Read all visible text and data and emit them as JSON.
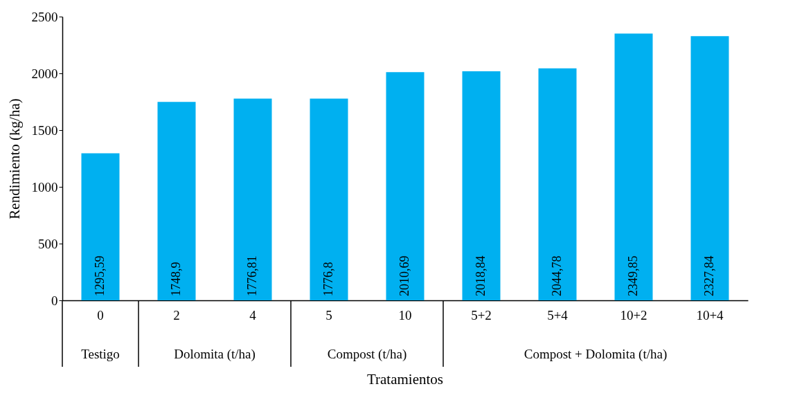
{
  "chart_data": {
    "type": "bar",
    "xlabel": "Tratamientos",
    "ylabel": "Rendimiento (kg/ha)",
    "categories": [
      "0",
      "2",
      "4",
      "5",
      "10",
      "5+2",
      "5+4",
      "10+2",
      "10+4"
    ],
    "values": [
      1295.59,
      1748.9,
      1776.81,
      1776.8,
      2010.69,
      2018.84,
      2044.78,
      2349.85,
      2327.84
    ],
    "value_labels": [
      "1295,59",
      "1748,9",
      "1776,81",
      "1776,8",
      "2010,69",
      "2018,84",
      "2044,78",
      "2349,85",
      "2327,84"
    ],
    "color": "#00b0f0",
    "ylim": [
      0,
      2500
    ],
    "yticks": [
      0,
      500,
      1000,
      1500,
      2000,
      2500
    ],
    "annotations": [
      "Testigo",
      "Dolomita (t/ha)",
      "Compost (t/ha)",
      "Compost + Dolomita (t/ha)"
    ],
    "grid": false
  }
}
